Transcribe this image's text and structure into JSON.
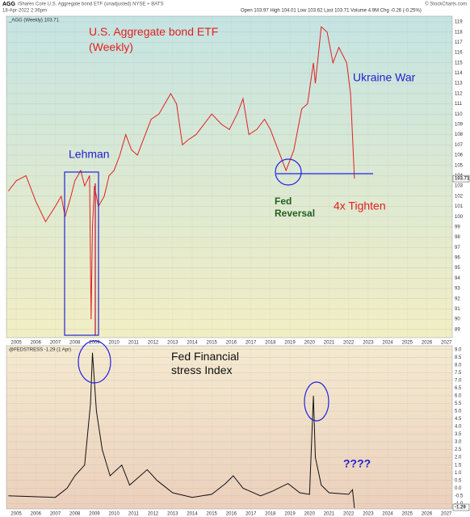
{
  "header": {
    "symbol": "AGG",
    "description": "iShares Core U.S. Aggregate bond ETF (unadjusted) NYSE + BATS",
    "date": "18-Apr-2022 2:36pm",
    "quote": "Open 103.97 High 104.01 Low 103.62 Last 103.71 Volume 4.9M Chg -0.26 (-0.25%)",
    "source": "© StockCharts.com"
  },
  "chart_data": [
    {
      "type": "line",
      "title": "U.S. Aggregate bond ETF (Weekly)",
      "last_label": "103.71",
      "annotations": [
        "Lehman",
        "Fed Reversal",
        "Ukraine War",
        "4x Tighten"
      ],
      "x": [
        2004.6,
        2005.0,
        2005.5,
        2006.0,
        2006.5,
        2007.0,
        2007.3,
        2007.5,
        2007.8,
        2008.0,
        2008.3,
        2008.5,
        2008.75,
        2008.83,
        2008.9,
        2009.0,
        2009.2,
        2009.5,
        2009.75,
        2010.0,
        2010.3,
        2010.6,
        2010.9,
        2011.2,
        2011.6,
        2011.9,
        2012.3,
        2012.6,
        2012.9,
        2013.2,
        2013.5,
        2013.8,
        2014.2,
        2014.6,
        2015.0,
        2015.5,
        2015.9,
        2016.3,
        2016.6,
        2016.9,
        2017.3,
        2017.7,
        2018.0,
        2018.4,
        2018.8,
        2019.2,
        2019.6,
        2019.9,
        2020.2,
        2020.3,
        2020.6,
        2020.9,
        2021.2,
        2021.5,
        2021.9,
        2022.1,
        2022.3
      ],
      "series": [
        {
          "name": "_AGG (Weekly) 103.71",
          "color": "#e02020",
          "values": [
            102.5,
            103.5,
            104.0,
            101.5,
            99.5,
            101.0,
            102.0,
            100.0,
            102.0,
            103.5,
            104.5,
            103.0,
            104.0,
            90.0,
            99.0,
            103.0,
            101.0,
            102.0,
            104.0,
            104.5,
            106.0,
            108.0,
            106.5,
            106.0,
            108.0,
            109.5,
            110.0,
            111.0,
            112.0,
            111.0,
            107.0,
            107.5,
            108.0,
            109.0,
            110.0,
            109.0,
            108.5,
            110.0,
            111.5,
            108.0,
            108.5,
            109.5,
            108.5,
            106.5,
            104.5,
            106.5,
            110.5,
            111.0,
            115.0,
            113.0,
            118.5,
            118.0,
            115.0,
            116.5,
            115.0,
            112.0,
            103.71
          ]
        }
      ],
      "xlim": [
        2004.5,
        2027.3
      ],
      "xticks": [
        2005,
        2006,
        2007,
        2008,
        2009,
        2010,
        2011,
        2012,
        2013,
        2014,
        2015,
        2016,
        2017,
        2018,
        2019,
        2020,
        2021,
        2022,
        2023,
        2024,
        2025,
        2026,
        2027
      ],
      "ylim": [
        88.2,
        119.55
      ],
      "yticks": [
        89,
        90,
        91,
        92,
        93,
        94,
        95,
        96,
        97,
        98,
        99,
        100,
        101,
        102,
        103,
        104,
        105,
        106,
        107,
        108,
        109,
        110,
        111,
        112,
        113,
        114,
        115,
        116,
        117,
        118,
        119
      ],
      "grid": true
    },
    {
      "type": "line",
      "title": "Fed Financial stress Index",
      "last_label": "-1.29",
      "annotations": [
        "????"
      ],
      "x": [
        2004.6,
        2007.0,
        2007.6,
        2008.0,
        2008.5,
        2008.8,
        2008.9,
        2009.1,
        2009.4,
        2009.8,
        2010.4,
        2010.8,
        2011.7,
        2012.2,
        2013.0,
        2014.0,
        2015.0,
        2015.7,
        2016.1,
        2016.6,
        2017.5,
        2018.1,
        2018.9,
        2019.5,
        2020.0,
        2020.2,
        2020.3,
        2020.6,
        2021.0,
        2022.0,
        2022.2,
        2022.3
      ],
      "series": [
        {
          "name": "@FEDSTRESS -1.29 (1 Apr)",
          "color": "#111111",
          "values": [
            -0.5,
            -0.6,
            0.0,
            0.8,
            1.5,
            5.5,
            8.8,
            5.0,
            2.5,
            0.8,
            1.5,
            0.2,
            1.2,
            0.5,
            -0.3,
            -0.6,
            -0.4,
            0.3,
            0.8,
            0.0,
            -0.5,
            -0.2,
            0.3,
            -0.3,
            -0.4,
            6.0,
            2.0,
            0.2,
            -0.3,
            -0.4,
            -0.1,
            -1.29
          ]
        }
      ],
      "xlim": [
        2004.5,
        2027.3
      ],
      "xticks": [
        2005,
        2006,
        2007,
        2008,
        2009,
        2010,
        2011,
        2012,
        2013,
        2014,
        2015,
        2016,
        2017,
        2018,
        2019,
        2020,
        2021,
        2022,
        2023,
        2024,
        2025,
        2026,
        2027
      ],
      "ylim": [
        -1.35,
        9.25
      ],
      "yticks": [
        {
          "value": 9,
          "label": "9.0"
        },
        8.5,
        {
          "value": 8,
          "label": "8.0"
        },
        7.5,
        {
          "value": 7,
          "label": "7.0"
        },
        6.5,
        {
          "value": 6,
          "label": "6.0"
        },
        5.5,
        {
          "value": 5,
          "label": "5.0"
        },
        4.5,
        {
          "value": 4,
          "label": "4.0"
        },
        3.5,
        {
          "value": 3,
          "label": "3.0"
        },
        2.5,
        {
          "value": 2,
          "label": "2.0"
        },
        1.5,
        {
          "value": 1,
          "label": "1.0"
        },
        0.5,
        {
          "value": 0,
          "label": "0.0"
        },
        -0.5,
        {
          "value": -1,
          "label": "-1.0"
        }
      ],
      "grid": true
    }
  ]
}
